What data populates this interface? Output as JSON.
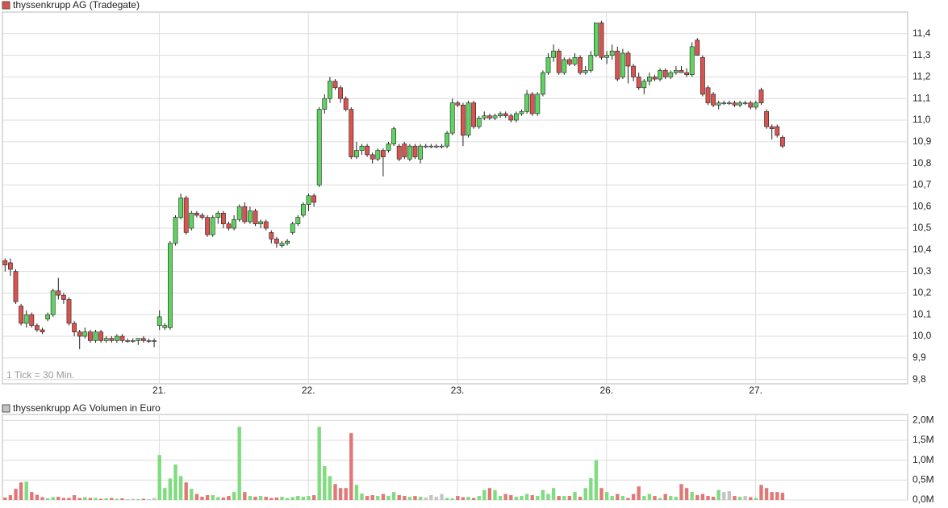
{
  "chart_data": [
    {
      "type": "candlestick",
      "title": "thyssenkrupp AG (Tradegate)",
      "annotation": "1 Tick = 30 Min.",
      "categories": [
        null,
        null,
        null,
        null,
        null,
        null,
        null,
        null,
        null,
        null,
        null,
        null,
        null,
        null,
        null,
        null,
        null,
        null,
        null,
        null,
        null,
        null,
        null,
        null,
        null,
        null,
        null,
        null,
        null,
        "21.",
        null,
        null,
        null,
        null,
        null,
        null,
        null,
        null,
        null,
        null,
        null,
        null,
        null,
        null,
        null,
        null,
        null,
        null,
        null,
        null,
        null,
        null,
        null,
        null,
        null,
        null,
        null,
        "22.",
        null,
        null,
        null,
        null,
        null,
        null,
        null,
        null,
        null,
        null,
        null,
        null,
        null,
        null,
        null,
        null,
        null,
        null,
        null,
        null,
        null,
        null,
        null,
        null,
        null,
        null,
        null,
        "23.",
        null,
        null,
        null,
        null,
        null,
        null,
        null,
        null,
        null,
        null,
        null,
        null,
        null,
        null,
        null,
        null,
        null,
        null,
        null,
        null,
        null,
        null,
        null,
        null,
        null,
        null,
        null,
        "26.",
        null,
        null,
        null,
        null,
        null,
        null,
        null,
        null,
        null,
        null,
        null,
        null,
        null,
        null,
        null,
        null,
        null,
        null,
        null,
        null,
        null,
        null,
        null,
        null,
        null,
        null,
        null,
        "27.",
        null,
        null,
        null,
        null,
        null
      ],
      "open": [
        10.35,
        10.34,
        10.3,
        10.14,
        10.06,
        10.1,
        10.05,
        10.03,
        10.08,
        10.1,
        10.21,
        10.19,
        10.17,
        10.06,
        10.02,
        10.0,
        10.02,
        9.98,
        10.02,
        9.98,
        9.99,
        9.98,
        10.0,
        9.98,
        9.98,
        9.98,
        9.99,
        9.98,
        9.98,
        10.05,
        10.04,
        10.04,
        10.43,
        10.55,
        10.64,
        10.5,
        10.57,
        10.56,
        10.55,
        10.47,
        10.55,
        10.57,
        10.52,
        10.5,
        10.54,
        10.6,
        10.53,
        10.58,
        10.52,
        10.53,
        10.48,
        10.45,
        10.42,
        10.43,
        10.48,
        10.52,
        10.56,
        10.61,
        10.65,
        10.7,
        11.05,
        11.1,
        11.18,
        11.15,
        11.1,
        11.05,
        10.83,
        10.86,
        10.88,
        10.84,
        10.82,
        10.86,
        10.86,
        10.89,
        10.88,
        10.89,
        10.82,
        10.88,
        10.82,
        10.88,
        10.88,
        10.88,
        10.88,
        10.88,
        10.94,
        11.08,
        11.07,
        10.93,
        11.08,
        10.97,
        11.01,
        11.02,
        11.01,
        11.02,
        11.03,
        11.02,
        11.0,
        11.03,
        11.04,
        11.12,
        11.03,
        11.12,
        11.22,
        11.29,
        11.32,
        11.22,
        11.28,
        11.26,
        11.29,
        11.22,
        11.23,
        11.3,
        11.45,
        11.29,
        11.3,
        11.32,
        11.2,
        11.31,
        11.25,
        11.2,
        11.15,
        11.18,
        11.2,
        11.19,
        11.23,
        11.2,
        11.22,
        11.23,
        11.22,
        11.21,
        11.37,
        11.29,
        11.15,
        11.12,
        11.07,
        11.08,
        11.08,
        11.08,
        11.07,
        11.08,
        11.08,
        11.06,
        11.14,
        11.04,
        10.97,
        10.97,
        10.92
      ],
      "high": [
        10.36,
        10.36,
        10.31,
        10.15,
        10.12,
        10.11,
        10.06,
        10.04,
        10.11,
        10.22,
        10.27,
        10.2,
        10.18,
        10.07,
        10.03,
        10.04,
        10.03,
        10.03,
        10.03,
        10.0,
        10.0,
        10.01,
        10.01,
        9.99,
        9.99,
        9.99,
        10.0,
        9.99,
        9.99,
        10.12,
        10.06,
        10.44,
        10.56,
        10.66,
        10.65,
        10.58,
        10.58,
        10.57,
        10.56,
        10.56,
        10.58,
        10.58,
        10.53,
        10.56,
        10.61,
        10.62,
        10.6,
        10.59,
        10.54,
        10.54,
        10.49,
        10.46,
        10.44,
        10.45,
        10.53,
        10.56,
        10.62,
        10.66,
        10.66,
        11.06,
        11.12,
        11.2,
        11.19,
        11.16,
        11.11,
        11.06,
        10.9,
        10.89,
        10.89,
        10.85,
        10.87,
        10.87,
        10.9,
        10.97,
        10.89,
        10.9,
        10.89,
        10.89,
        10.89,
        10.89,
        10.89,
        10.89,
        10.89,
        10.95,
        11.1,
        11.09,
        11.08,
        11.09,
        11.09,
        11.02,
        11.04,
        11.03,
        11.03,
        11.04,
        11.04,
        11.03,
        11.04,
        11.05,
        11.14,
        11.13,
        11.13,
        11.23,
        11.31,
        11.35,
        11.33,
        11.29,
        11.29,
        11.31,
        11.3,
        11.25,
        11.32,
        11.45,
        11.46,
        11.32,
        11.35,
        11.34,
        11.33,
        11.32,
        11.26,
        11.22,
        11.19,
        11.22,
        11.21,
        11.24,
        11.24,
        11.23,
        11.25,
        11.25,
        11.24,
        11.36,
        11.38,
        11.3,
        11.16,
        11.13,
        11.09,
        11.09,
        11.09,
        11.09,
        11.09,
        11.09,
        11.09,
        11.09,
        11.15,
        11.05,
        10.98,
        10.98,
        10.93
      ],
      "low": [
        10.3,
        10.28,
        10.15,
        10.05,
        10.04,
        10.04,
        10.02,
        10.01,
        10.07,
        10.09,
        10.17,
        10.15,
        10.05,
        10.0,
        9.94,
        9.99,
        9.97,
        9.97,
        9.97,
        9.97,
        9.97,
        9.97,
        9.97,
        9.97,
        9.97,
        9.96,
        9.97,
        9.97,
        9.95,
        10.03,
        10.03,
        10.03,
        10.42,
        10.54,
        10.47,
        10.49,
        10.55,
        10.54,
        10.46,
        10.46,
        10.52,
        10.5,
        10.49,
        10.49,
        10.53,
        10.52,
        10.52,
        10.51,
        10.5,
        10.49,
        10.43,
        10.41,
        10.41,
        10.42,
        10.47,
        10.51,
        10.55,
        10.58,
        10.6,
        10.69,
        11.03,
        11.08,
        11.14,
        11.08,
        11.04,
        10.82,
        10.82,
        10.84,
        10.83,
        10.8,
        10.81,
        10.74,
        10.85,
        10.88,
        10.81,
        10.82,
        10.81,
        10.82,
        10.8,
        10.87,
        10.87,
        10.87,
        10.87,
        10.87,
        10.93,
        11.06,
        10.88,
        10.92,
        10.96,
        10.96,
        11.0,
        11.0,
        11.0,
        11.01,
        11.01,
        10.99,
        10.99,
        11.02,
        11.03,
        11.02,
        11.02,
        11.11,
        11.21,
        11.27,
        11.21,
        11.21,
        11.25,
        11.25,
        11.21,
        11.21,
        11.22,
        11.29,
        11.28,
        11.26,
        11.28,
        11.18,
        11.19,
        11.17,
        11.18,
        11.14,
        11.12,
        11.16,
        11.18,
        11.18,
        11.19,
        11.19,
        11.21,
        11.22,
        11.2,
        11.2,
        11.3,
        11.11,
        11.07,
        11.06,
        11.05,
        11.07,
        11.07,
        11.06,
        11.06,
        11.07,
        11.05,
        11.05,
        11.07,
        10.96,
        10.91,
        10.92,
        10.87
      ],
      "close": [
        10.33,
        10.31,
        10.16,
        10.06,
        10.1,
        10.05,
        10.03,
        10.02,
        10.1,
        10.21,
        10.19,
        10.17,
        10.06,
        10.02,
        10.0,
        10.02,
        9.98,
        10.02,
        9.98,
        9.99,
        9.98,
        10.0,
        9.98,
        9.98,
        9.98,
        9.99,
        9.98,
        9.98,
        9.98,
        10.09,
        10.05,
        10.43,
        10.55,
        10.64,
        10.48,
        10.57,
        10.56,
        10.55,
        10.47,
        10.55,
        10.57,
        10.52,
        10.5,
        10.54,
        10.6,
        10.53,
        10.58,
        10.52,
        10.53,
        10.5,
        10.45,
        10.43,
        10.43,
        10.44,
        10.52,
        10.55,
        10.61,
        10.65,
        10.62,
        11.05,
        11.1,
        11.18,
        11.15,
        11.1,
        11.05,
        10.83,
        10.86,
        10.88,
        10.84,
        10.82,
        10.86,
        10.83,
        10.89,
        10.96,
        10.82,
        10.83,
        10.88,
        10.83,
        10.88,
        10.88,
        10.88,
        10.88,
        10.88,
        10.94,
        11.08,
        11.07,
        10.93,
        11.08,
        10.97,
        11.01,
        11.02,
        11.01,
        11.02,
        11.03,
        11.02,
        11.0,
        11.03,
        11.04,
        11.12,
        11.03,
        11.12,
        11.22,
        11.29,
        11.32,
        11.22,
        11.28,
        11.26,
        11.29,
        11.22,
        11.23,
        11.3,
        11.45,
        11.29,
        11.3,
        11.32,
        11.19,
        11.31,
        11.25,
        11.2,
        11.15,
        11.18,
        11.2,
        11.19,
        11.23,
        11.2,
        11.22,
        11.23,
        11.22,
        11.21,
        11.34,
        11.3,
        11.12,
        11.08,
        11.07,
        11.08,
        11.08,
        11.08,
        11.07,
        11.08,
        11.08,
        11.06,
        11.08,
        11.08,
        10.97,
        10.96,
        10.93,
        10.88
      ],
      "up_color": "#5fd35f",
      "down_color": "#d9534f",
      "flat_color": "#bbbbbb",
      "ylim": [
        9.78,
        11.5
      ],
      "yticks": [
        {
          "value": 9.8,
          "label": "9,8"
        },
        {
          "value": 9.9,
          "label": "9,9"
        },
        {
          "value": 10.0,
          "label": "10,0"
        },
        {
          "value": 10.1,
          "label": "10,1"
        },
        {
          "value": 10.2,
          "label": "10,2"
        },
        {
          "value": 10.3,
          "label": "10,3"
        },
        {
          "value": 10.4,
          "label": "10,4"
        },
        {
          "value": 10.5,
          "label": "10,5"
        },
        {
          "value": 10.6,
          "label": "10,6"
        },
        {
          "value": 10.7,
          "label": "10,7"
        },
        {
          "value": 10.8,
          "label": "10,8"
        },
        {
          "value": 10.9,
          "label": "10,9"
        },
        {
          "value": 11.0,
          "label": "11,0"
        },
        {
          "value": 11.1,
          "label": "11,1"
        },
        {
          "value": 11.2,
          "label": "11,2"
        },
        {
          "value": 11.3,
          "label": "11,3"
        },
        {
          "value": 11.4,
          "label": "11,4"
        }
      ],
      "grid": true
    },
    {
      "type": "bar",
      "title": "thyssenkrupp AG Volumen in Euro",
      "values": [
        0.06,
        0.12,
        0.28,
        0.44,
        0.46,
        0.2,
        0.13,
        0.07,
        0.04,
        0.07,
        0.08,
        0.05,
        0.05,
        0.12,
        0.05,
        0.07,
        0.05,
        0.05,
        0.03,
        0.04,
        0.05,
        0.03,
        0.04,
        0.02,
        0.03,
        0.02,
        0.03,
        0.02,
        0.05,
        1.13,
        0.3,
        0.54,
        0.89,
        0.6,
        0.44,
        0.28,
        0.15,
        0.08,
        0.12,
        0.12,
        0.07,
        0.06,
        0.1,
        0.2,
        1.84,
        0.2,
        0.1,
        0.08,
        0.1,
        0.08,
        0.05,
        0.06,
        0.08,
        0.05,
        0.07,
        0.1,
        0.08,
        0.1,
        0.12,
        1.84,
        0.85,
        0.6,
        0.4,
        0.3,
        0.3,
        1.68,
        0.38,
        0.16,
        0.1,
        0.12,
        0.1,
        0.15,
        0.1,
        0.2,
        0.12,
        0.1,
        0.08,
        0.1,
        0.08,
        0.06,
        0.12,
        0.08,
        0.15,
        0.05,
        0.04,
        0.1,
        0.07,
        0.08,
        0.05,
        0.1,
        0.25,
        0.3,
        0.25,
        0.1,
        0.15,
        0.12,
        0.08,
        0.1,
        0.15,
        0.12,
        0.1,
        0.25,
        0.15,
        0.3,
        0.1,
        0.1,
        0.1,
        0.2,
        0.08,
        0.3,
        0.55,
        1.0,
        0.3,
        0.2,
        0.1,
        0.15,
        0.1,
        0.05,
        0.15,
        0.34,
        0.1,
        0.15,
        0.1,
        0.05,
        0.15,
        0.1,
        0.08,
        0.4,
        0.3,
        0.2,
        0.12,
        0.15,
        0.1,
        0.08,
        0.25,
        0.2,
        0.22,
        0.1,
        0.08,
        0.1,
        0.07,
        0.05,
        0.38,
        0.3,
        0.2,
        0.2,
        0.18
      ],
      "up_color": "#7fdc7f",
      "down_color": "#e07878",
      "flat_color": "#c4c4c4",
      "ylim": [
        0,
        2.15
      ],
      "yticks": [
        {
          "value": 0,
          "label": "0,0M"
        },
        {
          "value": 0.5,
          "label": "0,5M"
        },
        {
          "value": 1.0,
          "label": "1,0M"
        },
        {
          "value": 1.5,
          "label": "1,5M"
        },
        {
          "value": 2.0,
          "label": "2,0M"
        }
      ],
      "grid": true
    }
  ]
}
